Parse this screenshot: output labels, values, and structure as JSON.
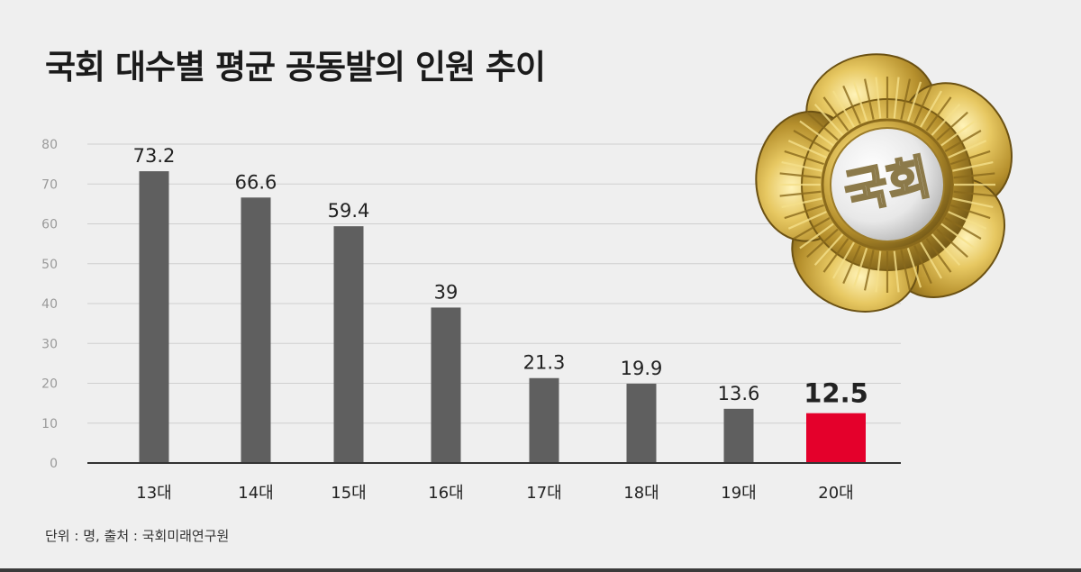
{
  "title": "국회 대수별 평균 공동발의 인원 추이",
  "footer": "단위 : 명, 출처 : 국회미래연구원",
  "badge": {
    "text": "국회",
    "icon": "assembly-badge-icon"
  },
  "colors": {
    "bar": "#5f5f5f",
    "highlight": "#e4002b",
    "grid": "#cfcfcf",
    "axis": "#333333"
  },
  "chart_data": {
    "type": "bar",
    "title": "국회 대수별 평균 공동발의 인원 추이",
    "xlabel": "",
    "ylabel": "",
    "unit": "명",
    "categories": [
      "13대",
      "14대",
      "15대",
      "16대",
      "17대",
      "18대",
      "19대",
      "20대"
    ],
    "values": [
      73.2,
      66.6,
      59.4,
      39,
      21.3,
      19.9,
      13.6,
      12.5
    ],
    "value_labels": [
      "73.2",
      "66.6",
      "59.4",
      "39",
      "21.3",
      "19.9",
      "13.6",
      "12.5"
    ],
    "highlight_category": "20대",
    "ylim": [
      0,
      80
    ],
    "yticks": [
      0,
      10,
      20,
      30,
      40,
      50,
      60,
      70,
      80
    ],
    "grid": true,
    "legend": "none"
  }
}
